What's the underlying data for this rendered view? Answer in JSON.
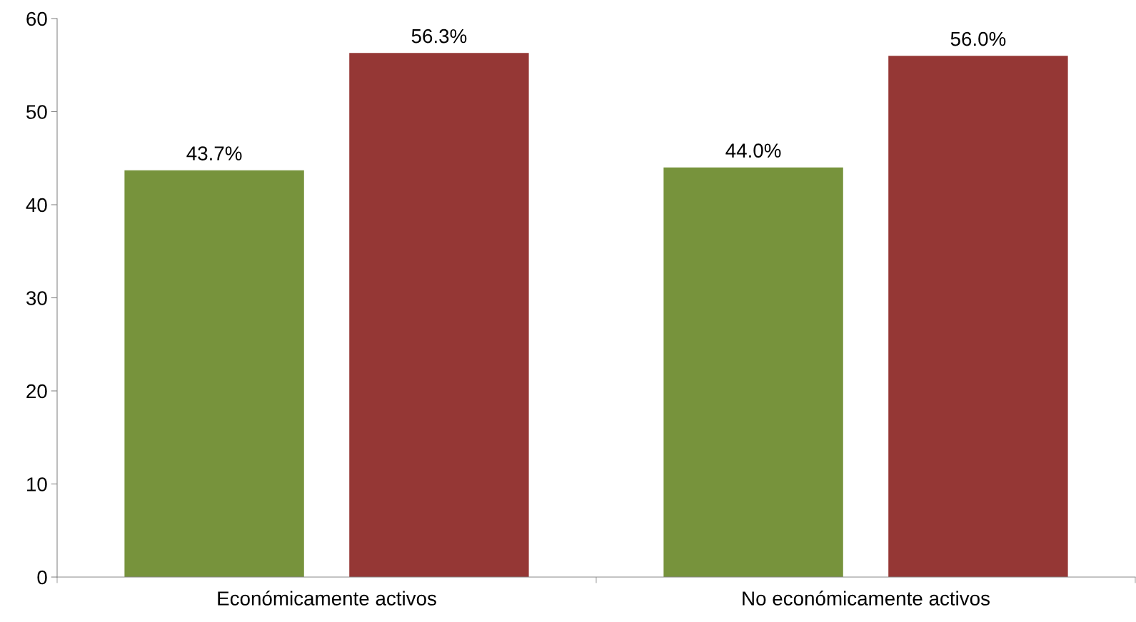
{
  "chart_data": {
    "type": "bar",
    "categories": [
      "Económicamente activos",
      "No económicamente activos"
    ],
    "series": [
      {
        "color": "#77933c",
        "values": [
          43.7,
          44.0
        ],
        "value_labels": [
          "43.7%",
          "44.0%"
        ]
      },
      {
        "color": "#953735",
        "values": [
          56.3,
          56.0
        ],
        "value_labels": [
          "56.3%",
          "56.0%"
        ]
      }
    ],
    "ylim": [
      0,
      60
    ],
    "yticks": [
      0,
      10,
      20,
      30,
      40,
      50,
      60
    ],
    "grid": false,
    "legend": false
  }
}
